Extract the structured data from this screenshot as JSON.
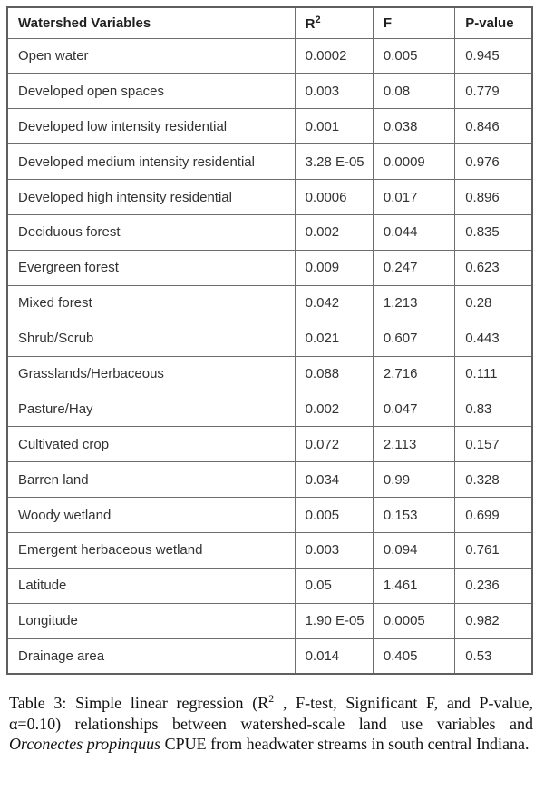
{
  "colors": {
    "background": "#ffffff",
    "table_border": "#6e6e6e",
    "table_outer_border": "#5f5f5f",
    "table_text": "#333333",
    "caption_text": "#111111"
  },
  "table": {
    "header": {
      "variables": "Watershed Variables",
      "r2_base": "R",
      "r2_sup": "2",
      "f": "F",
      "p_value": "P-value"
    },
    "rows": [
      [
        "Open water",
        "0.0002",
        "0.005",
        "0.945"
      ],
      [
        "Developed open spaces",
        "0.003",
        "0.08",
        "0.779"
      ],
      [
        "Developed low intensity residential",
        "0.001",
        "0.038",
        "0.846"
      ],
      [
        "Developed medium intensity residential",
        "3.28 E-05",
        "0.0009",
        "0.976"
      ],
      [
        "Developed high intensity residential",
        "0.0006",
        "0.017",
        "0.896"
      ],
      [
        "Deciduous forest",
        "0.002",
        "0.044",
        "0.835"
      ],
      [
        "Evergreen forest",
        "0.009",
        "0.247",
        "0.623"
      ],
      [
        "Mixed forest",
        "0.042",
        "1.213",
        "0.28"
      ],
      [
        "Shrub/Scrub",
        "0.021",
        "0.607",
        "0.443"
      ],
      [
        "Grasslands/Herbaceous",
        "0.088",
        "2.716",
        "0.111"
      ],
      [
        "Pasture/Hay",
        "0.002",
        "0.047",
        "0.83"
      ],
      [
        "Cultivated crop",
        "0.072",
        "2.113",
        "0.157"
      ],
      [
        "Barren land",
        "0.034",
        "0.99",
        "0.328"
      ],
      [
        "Woody wetland",
        "0.005",
        "0.153",
        "0.699"
      ],
      [
        "Emergent herbaceous wetland",
        "0.003",
        "0.094",
        "0.761"
      ],
      [
        "Latitude",
        "0.05",
        "1.461",
        "0.236"
      ],
      [
        "Longitude",
        "1.90 E-05",
        "0.0005",
        "0.982"
      ],
      [
        "Drainage area",
        "0.014",
        "0.405",
        "0.53"
      ]
    ]
  },
  "caption": {
    "parts": [
      {
        "style": "normal",
        "text": "Table 3: Simple linear regression (R"
      },
      {
        "style": "sup",
        "text": "2"
      },
      {
        "style": "normal",
        "text": " , F-test, Significant F, and P-value, α=0.10) relationships between watershed-scale land use variables and "
      },
      {
        "style": "italic",
        "text": "Orconectes propinquus"
      },
      {
        "style": "normal",
        "text": " CPUE from headwater streams in south central Indiana."
      }
    ]
  }
}
